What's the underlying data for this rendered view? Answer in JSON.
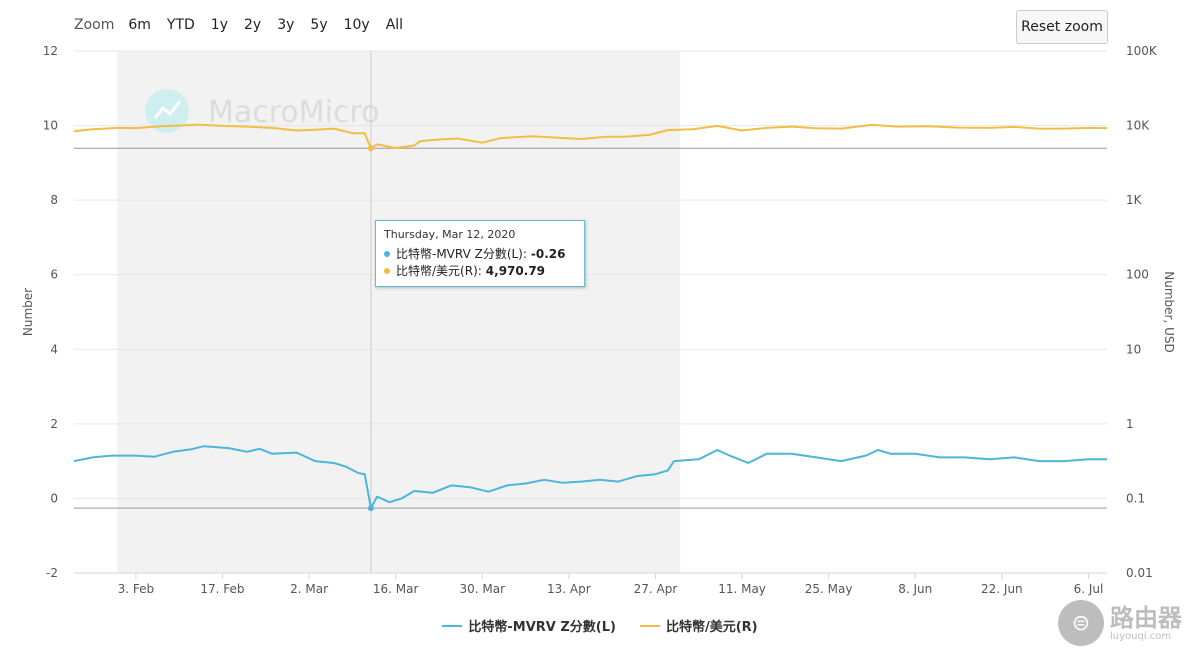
{
  "zoom": {
    "label": "Zoom",
    "options": [
      "6m",
      "YTD",
      "1y",
      "2y",
      "3y",
      "5y",
      "10y",
      "All"
    ]
  },
  "reset_zoom_label": "Reset zoom",
  "watermark": "MacroMicro",
  "tooltip": {
    "date": "Thursday, Mar 12, 2020",
    "rows": [
      {
        "label": "比特幣-MVRV Z分數(L):",
        "value": "-0.26",
        "color": "#4bb6d9"
      },
      {
        "label": "比特幣/美元(R):",
        "value": "4,970.79",
        "color": "#f1bd45"
      }
    ]
  },
  "corner_logo": {
    "text": "路由器",
    "sub": "luyouqi.com"
  },
  "chart_data": {
    "type": "line",
    "x_start": "2020-01-24",
    "x_end": "2020-07-09",
    "x_ticks": [
      {
        "date": "2020-02-03",
        "label": "3. Feb"
      },
      {
        "date": "2020-02-17",
        "label": "17. Feb"
      },
      {
        "date": "2020-03-02",
        "label": "2. Mar"
      },
      {
        "date": "2020-03-16",
        "label": "16. Mar"
      },
      {
        "date": "2020-03-30",
        "label": "30. Mar"
      },
      {
        "date": "2020-04-13",
        "label": "13. Apr"
      },
      {
        "date": "2020-04-27",
        "label": "27. Apr"
      },
      {
        "date": "2020-05-11",
        "label": "11. May"
      },
      {
        "date": "2020-05-25",
        "label": "25. May"
      },
      {
        "date": "2020-06-08",
        "label": "8. Jun"
      },
      {
        "date": "2020-06-22",
        "label": "22. Jun"
      },
      {
        "date": "2020-07-06",
        "label": "6. Jul"
      }
    ],
    "y_left": {
      "title": "Number",
      "min": -2,
      "max": 12,
      "ticks": [
        -2,
        0,
        2,
        4,
        6,
        8,
        10,
        12
      ],
      "tick_labels": [
        "-2",
        "0",
        "2",
        "4",
        "6",
        "8",
        "10",
        "12"
      ]
    },
    "y_right": {
      "title": "Number, USD",
      "scale": "log",
      "min": 0.01,
      "max": 100000,
      "ticks": [
        0.01,
        0.1,
        1,
        10,
        100,
        1000,
        10000,
        100000
      ],
      "tick_labels": [
        "0.01",
        "0.1",
        "1",
        "10",
        "100",
        "1K",
        "10K",
        "100K"
      ]
    },
    "shaded_range": {
      "from": "2020-01-31",
      "to": "2020-05-01"
    },
    "crosshair_date": "2020-03-12",
    "crosshair_value_right": 4970.79,
    "crosshair_value_left": -0.26,
    "grid": true,
    "legend_position": "bottom",
    "series": [
      {
        "name": "比特幣-MVRV Z分數(L)",
        "axis": "left",
        "color": "#4bb6d9",
        "points": [
          [
            "2020-01-24",
            1.0
          ],
          [
            "2020-01-27",
            1.1
          ],
          [
            "2020-01-30",
            1.15
          ],
          [
            "2020-02-03",
            1.15
          ],
          [
            "2020-02-06",
            1.12
          ],
          [
            "2020-02-09",
            1.25
          ],
          [
            "2020-02-12",
            1.32
          ],
          [
            "2020-02-14",
            1.4
          ],
          [
            "2020-02-18",
            1.35
          ],
          [
            "2020-02-21",
            1.25
          ],
          [
            "2020-02-23",
            1.33
          ],
          [
            "2020-02-25",
            1.2
          ],
          [
            "2020-02-29",
            1.23
          ],
          [
            "2020-03-03",
            1.0
          ],
          [
            "2020-03-06",
            0.95
          ],
          [
            "2020-03-08",
            0.85
          ],
          [
            "2020-03-10",
            0.68
          ],
          [
            "2020-03-11",
            0.65
          ],
          [
            "2020-03-12",
            -0.26
          ],
          [
            "2020-03-13",
            0.05
          ],
          [
            "2020-03-15",
            -0.1
          ],
          [
            "2020-03-17",
            0.0
          ],
          [
            "2020-03-19",
            0.2
          ],
          [
            "2020-03-22",
            0.15
          ],
          [
            "2020-03-25",
            0.35
          ],
          [
            "2020-03-28",
            0.3
          ],
          [
            "2020-03-31",
            0.18
          ],
          [
            "2020-04-03",
            0.35
          ],
          [
            "2020-04-06",
            0.4
          ],
          [
            "2020-04-09",
            0.5
          ],
          [
            "2020-04-12",
            0.42
          ],
          [
            "2020-04-15",
            0.45
          ],
          [
            "2020-04-18",
            0.5
          ],
          [
            "2020-04-21",
            0.45
          ],
          [
            "2020-04-24",
            0.6
          ],
          [
            "2020-04-27",
            0.65
          ],
          [
            "2020-04-29",
            0.75
          ],
          [
            "2020-04-30",
            1.0
          ],
          [
            "2020-05-04",
            1.05
          ],
          [
            "2020-05-07",
            1.3
          ],
          [
            "2020-05-09",
            1.15
          ],
          [
            "2020-05-12",
            0.95
          ],
          [
            "2020-05-15",
            1.2
          ],
          [
            "2020-05-19",
            1.2
          ],
          [
            "2020-05-23",
            1.1
          ],
          [
            "2020-05-27",
            1.0
          ],
          [
            "2020-05-31",
            1.15
          ],
          [
            "2020-06-02",
            1.3
          ],
          [
            "2020-06-04",
            1.2
          ],
          [
            "2020-06-08",
            1.2
          ],
          [
            "2020-06-12",
            1.1
          ],
          [
            "2020-06-16",
            1.1
          ],
          [
            "2020-06-20",
            1.05
          ],
          [
            "2020-06-24",
            1.1
          ],
          [
            "2020-06-28",
            1.0
          ],
          [
            "2020-07-02",
            1.0
          ],
          [
            "2020-07-06",
            1.05
          ],
          [
            "2020-07-09",
            1.05
          ]
        ]
      },
      {
        "name": "比特幣/美元(R)",
        "axis": "right",
        "color": "#f1bd45",
        "points": [
          [
            "2020-01-24",
            8400
          ],
          [
            "2020-01-27",
            8900
          ],
          [
            "2020-01-31",
            9300
          ],
          [
            "2020-02-03",
            9250
          ],
          [
            "2020-02-07",
            9800
          ],
          [
            "2020-02-10",
            10000
          ],
          [
            "2020-02-13",
            10300
          ],
          [
            "2020-02-17",
            9900
          ],
          [
            "2020-02-21",
            9700
          ],
          [
            "2020-02-25",
            9300
          ],
          [
            "2020-02-29",
            8600
          ],
          [
            "2020-03-03",
            8800
          ],
          [
            "2020-03-06",
            9100
          ],
          [
            "2020-03-09",
            7900
          ],
          [
            "2020-03-11",
            7900
          ],
          [
            "2020-03-12",
            4970.79
          ],
          [
            "2020-03-13",
            5600
          ],
          [
            "2020-03-16",
            5000
          ],
          [
            "2020-03-19",
            5400
          ],
          [
            "2020-03-20",
            6200
          ],
          [
            "2020-03-23",
            6500
          ],
          [
            "2020-03-26",
            6700
          ],
          [
            "2020-03-30",
            5900
          ],
          [
            "2020-04-02",
            6800
          ],
          [
            "2020-04-07",
            7200
          ],
          [
            "2020-04-11",
            6900
          ],
          [
            "2020-04-15",
            6600
          ],
          [
            "2020-04-19",
            7100
          ],
          [
            "2020-04-22",
            7100
          ],
          [
            "2020-04-26",
            7500
          ],
          [
            "2020-04-29",
            8700
          ],
          [
            "2020-05-03",
            8900
          ],
          [
            "2020-05-07",
            9900
          ],
          [
            "2020-05-11",
            8600
          ],
          [
            "2020-05-15",
            9300
          ],
          [
            "2020-05-19",
            9700
          ],
          [
            "2020-05-23",
            9200
          ],
          [
            "2020-05-27",
            9100
          ],
          [
            "2020-06-01",
            10200
          ],
          [
            "2020-06-05",
            9700
          ],
          [
            "2020-06-10",
            9800
          ],
          [
            "2020-06-15",
            9400
          ],
          [
            "2020-06-20",
            9300
          ],
          [
            "2020-06-24",
            9600
          ],
          [
            "2020-06-28",
            9100
          ],
          [
            "2020-07-02",
            9100
          ],
          [
            "2020-07-06",
            9300
          ],
          [
            "2020-07-09",
            9250
          ]
        ]
      }
    ]
  }
}
